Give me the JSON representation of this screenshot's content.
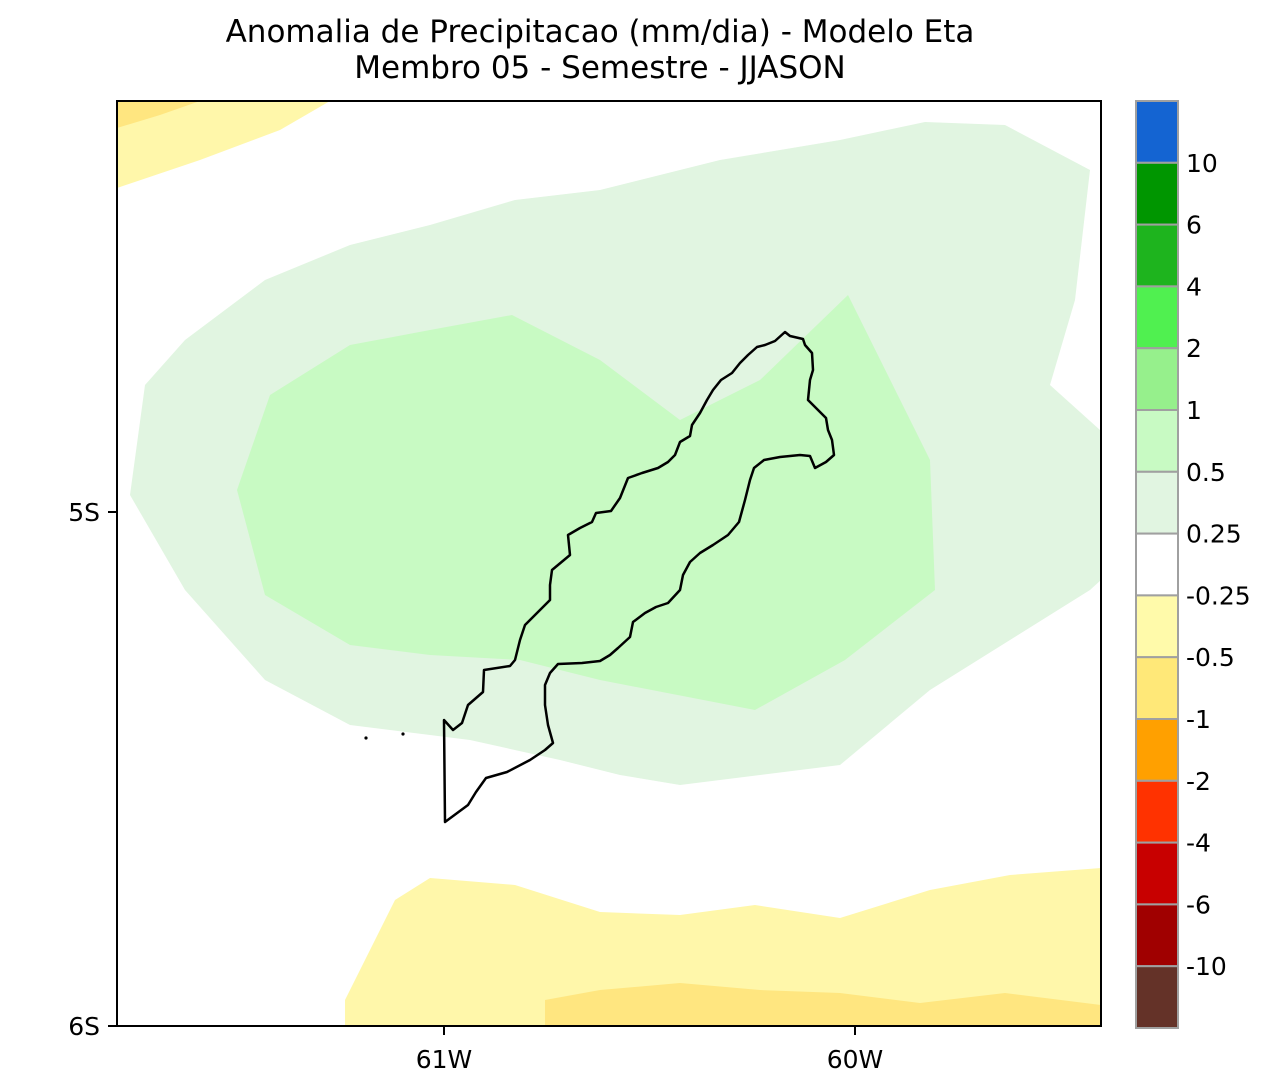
{
  "title_line1": "Anomalia de Precipitacao (mm/dia) - Modelo Eta",
  "title_line2": "Membro 05 - Semestre - JJASON",
  "axes": {
    "x_ticks": [
      "61W",
      "60W"
    ],
    "y_ticks": [
      "5S",
      "6S"
    ]
  },
  "colorbar": {
    "colors": [
      "#1464d2",
      "#009600",
      "#1eb41e",
      "#50f050",
      "#96f08c",
      "#c8fac3",
      "#e1f5e1",
      "#ffffff",
      "#fffaaa",
      "#ffe878",
      "#ffa000",
      "#ff3200",
      "#c80000",
      "#a00000",
      "#643228"
    ],
    "labels": [
      "10",
      "6",
      "4",
      "2",
      "1",
      "0.5",
      "0.25",
      "-0.25",
      "-0.5",
      "-1",
      "-2",
      "-4",
      "-6",
      "-10"
    ]
  },
  "fill_colors": {
    "light_yellow": "#fff7aa",
    "yellow": "#ffe680",
    "light_green": "#e1f5e1",
    "green": "#c8fac3"
  }
}
